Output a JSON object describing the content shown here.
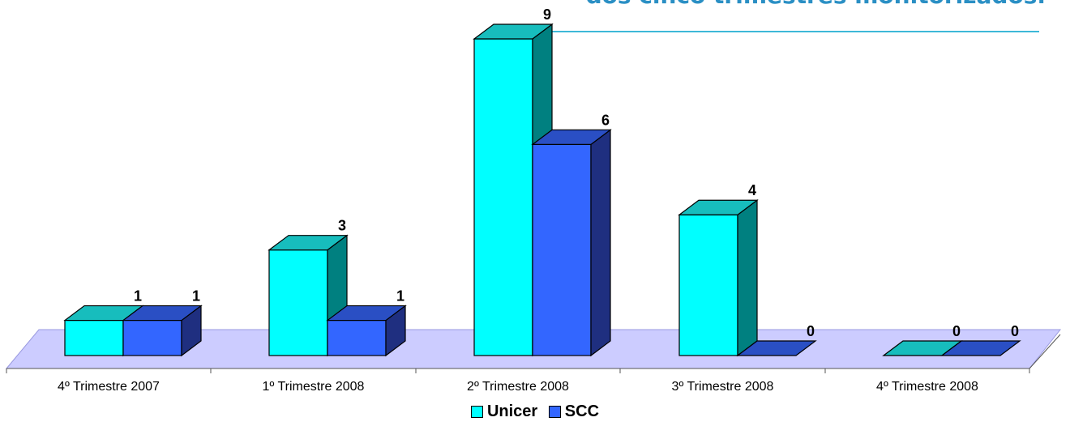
{
  "page": {
    "title": "dos cinco trimestres monitorizados."
  },
  "chart_data": {
    "type": "bar",
    "style": "3d-clustered",
    "categories": [
      "4º Trimestre 2007",
      "1º Trimestre 2008",
      "2º Trimestre 2008",
      "3º Trimestre 2008",
      "4º Trimestre 2008"
    ],
    "series": [
      {
        "name": "Unicer",
        "values": [
          1,
          3,
          9,
          4,
          0
        ],
        "color": "#00ffff",
        "side_color": "#008080",
        "top_color": "#17bdbd"
      },
      {
        "name": "SCC",
        "values": [
          1,
          1,
          6,
          0,
          0
        ],
        "color": "#3366ff",
        "side_color": "#1f2f80",
        "top_color": "#2a4fc4"
      }
    ],
    "ylim": [
      0,
      9
    ],
    "data_labels": true,
    "floor_color": "#ccccff",
    "legend_position": "bottom",
    "grid": false
  }
}
